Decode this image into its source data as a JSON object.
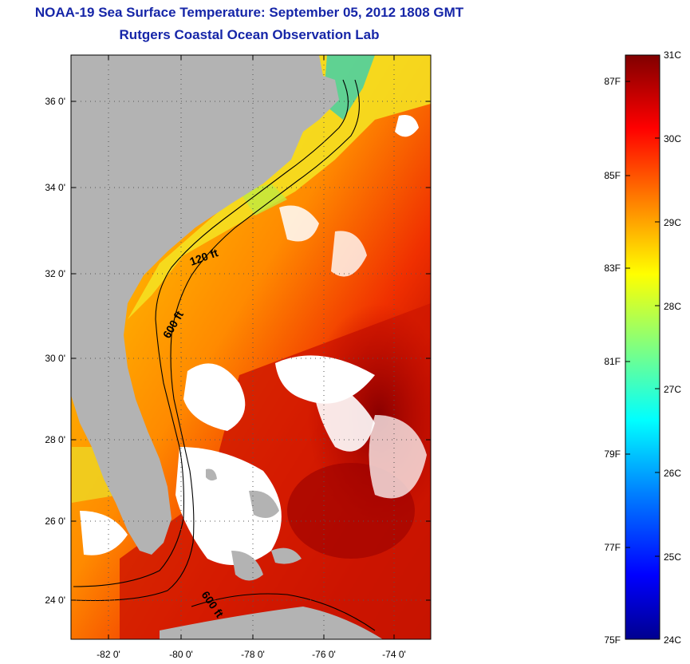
{
  "header": {
    "title": "NOAA-19 Sea Surface Temperature:  September 05, 2012 1808 GMT",
    "subtitle": "Rutgers Coastal Ocean Observation Lab"
  },
  "map": {
    "lat_labels": [
      "36 0'",
      "34 0'",
      "32 0'",
      "30 0'",
      "28 0'",
      "26 0'",
      "24 0'"
    ],
    "lon_labels": [
      "-82 0'",
      "-80 0'",
      "-78 0'",
      "-76 0'",
      "-74 0'"
    ],
    "contour_labels": [
      "120 ft",
      "600 ft",
      "600 ft"
    ],
    "colors": {
      "land": "#b3b3b3",
      "cloud": "#ffffff",
      "contour": "#000000"
    }
  },
  "colorbar": {
    "celsius_labels": [
      "31C",
      "30C",
      "29C",
      "28C",
      "27C",
      "26C",
      "25C",
      "24C"
    ],
    "fahrenheit_labels": [
      "87F",
      "85F",
      "83F",
      "81F",
      "79F",
      "77F",
      "75F"
    ],
    "colors": [
      "#00008f",
      "#0000ff",
      "#0080ff",
      "#00ffff",
      "#80ff80",
      "#ffff00",
      "#ff8000",
      "#ff0000",
      "#800000"
    ]
  }
}
